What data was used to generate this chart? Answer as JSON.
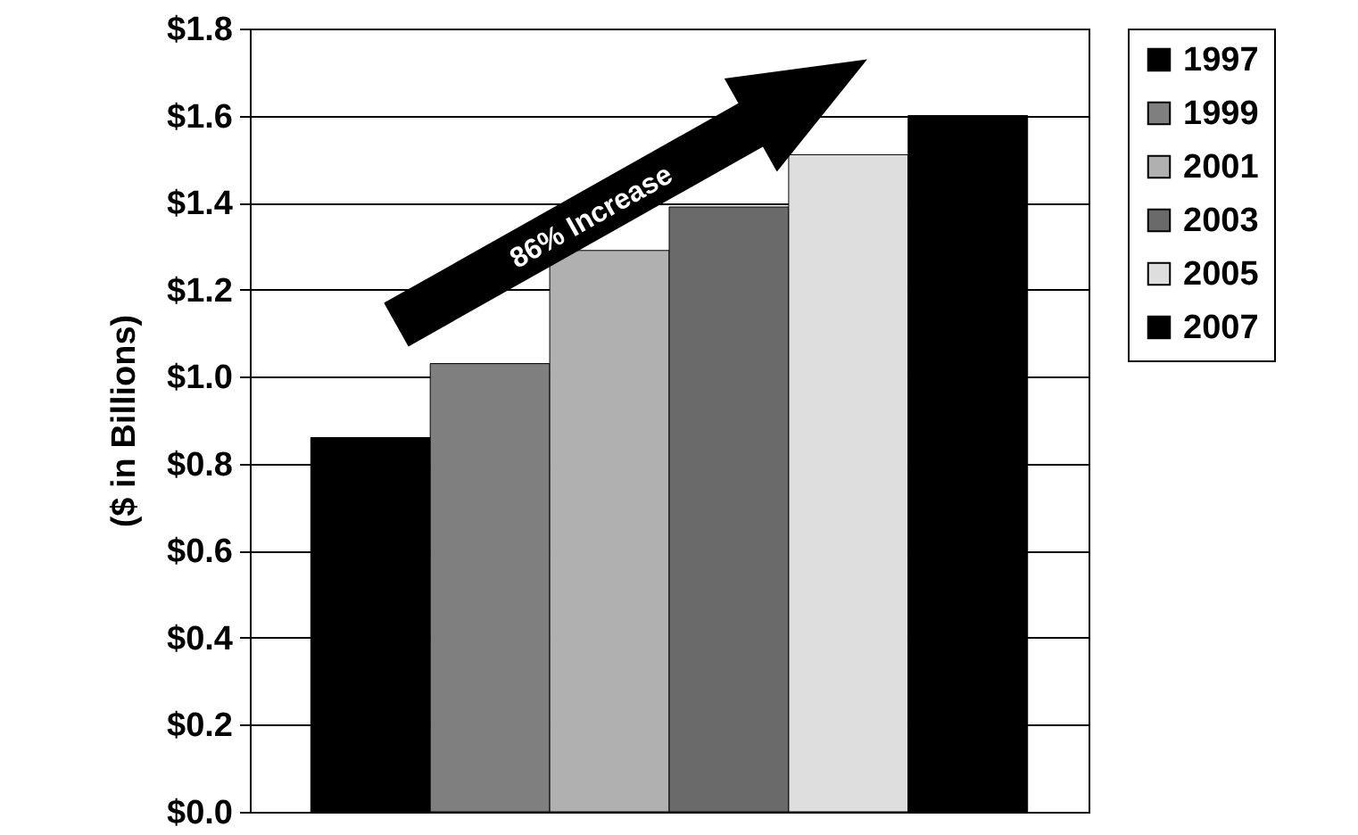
{
  "chart_data": {
    "type": "bar",
    "ylabel": "($ in Billions)",
    "categories": [
      null
    ],
    "series": [
      {
        "name": "1997",
        "color": "#000000",
        "values": [
          0.86
        ]
      },
      {
        "name": "1999",
        "color": "#7f7f7f",
        "values": [
          1.03
        ]
      },
      {
        "name": "2001",
        "color": "#b0b0b0",
        "values": [
          1.29
        ]
      },
      {
        "name": "2003",
        "color": "#6a6a6a",
        "values": [
          1.39
        ]
      },
      {
        "name": "2005",
        "color": "#dedede",
        "values": [
          1.51
        ]
      },
      {
        "name": "2007",
        "color": "#000000",
        "values": [
          1.6
        ]
      }
    ],
    "ylim": [
      0,
      1.8
    ],
    "yticks": [
      {
        "value": 0,
        "label": "$0.0"
      },
      {
        "value": 0.2,
        "label": "$0.2"
      },
      {
        "value": 0.4,
        "label": "$0.4"
      },
      {
        "value": 0.6,
        "label": "$0.6"
      },
      {
        "value": 0.8,
        "label": "$0.8"
      },
      {
        "value": 1.0,
        "label": "$1.0"
      },
      {
        "value": 1.2,
        "label": "$1.2"
      },
      {
        "value": 1.4,
        "label": "$1.4"
      },
      {
        "value": 1.6,
        "label": "$1.6"
      },
      {
        "value": 1.8,
        "label": "$1.8"
      }
    ],
    "grid": "y",
    "legend": "right",
    "tick_labels": "y",
    "annotations": [
      "86% Increase"
    ]
  }
}
